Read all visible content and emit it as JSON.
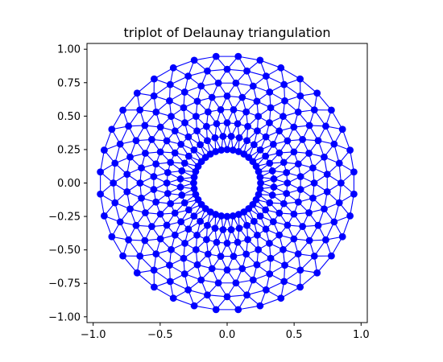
{
  "chart_data": {
    "type": "scatter",
    "title": "triplot of Delaunay triangulation",
    "xlabel": "",
    "ylabel": "",
    "xlim": [
      -1.0,
      1.0
    ],
    "ylim": [
      -1.0,
      1.0
    ],
    "x_ticks": [
      -1.0,
      -0.5,
      0.0,
      0.5,
      1.0
    ],
    "x_tick_labels": [
      "−1.0",
      "−0.5",
      "0.0",
      "0.5",
      "1.0"
    ],
    "y_ticks": [
      1.0,
      0.75,
      0.5,
      0.25,
      0.0,
      -0.25,
      -0.5,
      -0.75,
      -1.0
    ],
    "y_tick_labels": [
      "1.00",
      "0.75",
      "0.50",
      "0.25",
      "0.00",
      "−0.25",
      "−0.50",
      "−0.75",
      "−1.00"
    ],
    "grid": false,
    "aspect": "equal",
    "mesh": {
      "radius_inner": 0.25,
      "radius_outer": 0.95,
      "n_radii": 8,
      "n_angles": 36,
      "angle_offset_per_ring": "pi/36"
    },
    "colors": {
      "mesh": "#0000ff",
      "axes": "#000000",
      "background": "#ffffff"
    }
  }
}
